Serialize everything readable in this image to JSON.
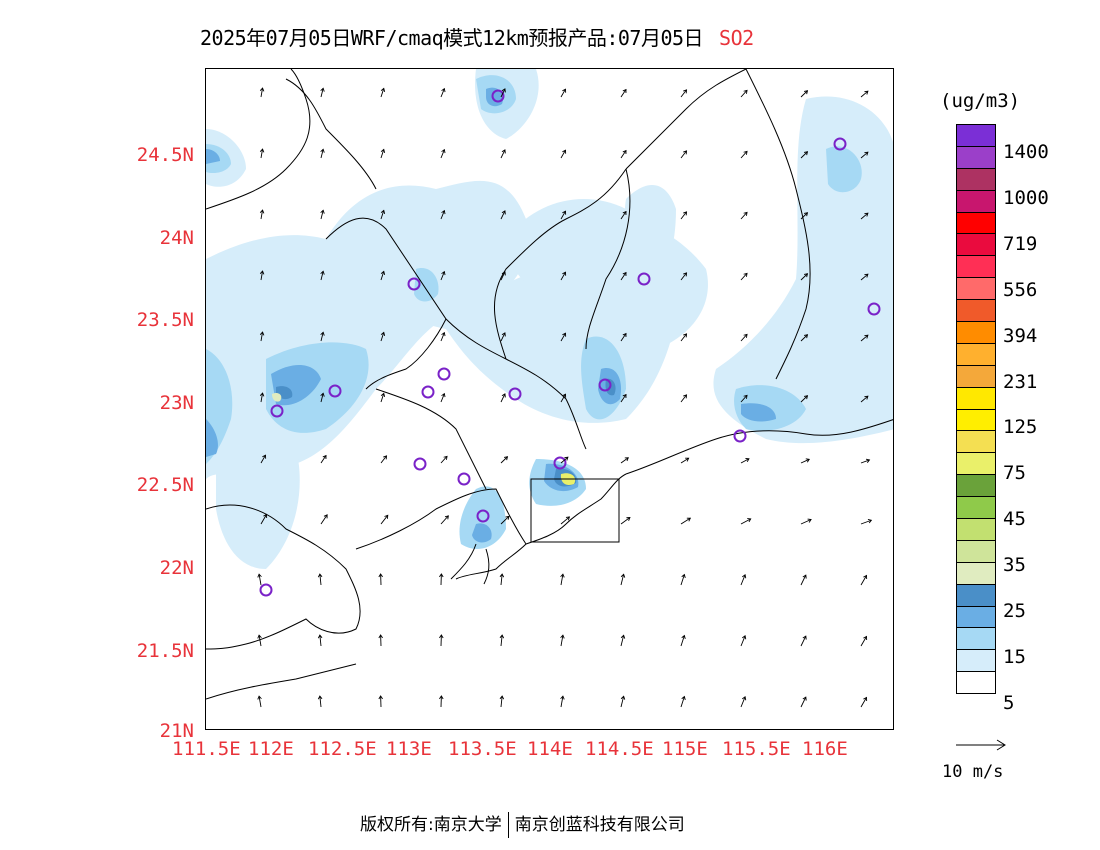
{
  "title": {
    "main": "2025年07月05日WRF/cmaq模式12km预报产品:07月05日",
    "species": "SO2",
    "species_color": "#e8333a"
  },
  "axes": {
    "lat_ticks": [
      "24.5N",
      "24N",
      "23.5N",
      "23N",
      "22.5N",
      "22N",
      "21.5N",
      "21N"
    ],
    "lon_ticks": [
      "111.5E",
      "112E",
      "112.5E",
      "113E",
      "113.5E",
      "114E",
      "114.5E",
      "115E",
      "115.5E",
      "116E"
    ],
    "tick_color": "#e8333a"
  },
  "colorbar": {
    "unit": "(ug/m3)",
    "labels": [
      "1400",
      "1000",
      "719",
      "556",
      "394",
      "231",
      "125",
      "75",
      "45",
      "35",
      "25",
      "15",
      "5"
    ],
    "colors": [
      "#7b2fd6",
      "#9b3fc9",
      "#ad3262",
      "#c8166e",
      "#ff0000",
      "#ea0b3e",
      "#ff2f55",
      "#ff6a6a",
      "#f05a2a",
      "#ff8c00",
      "#ffb02e",
      "#f4a83a",
      "#ffe800",
      "#ffee00",
      "#f4df52",
      "#eaf06a",
      "#6aa23a",
      "#8fca4a",
      "#c2e070",
      "#cfe49a",
      "#e0ecc0",
      "#4a8fc8",
      "#6aaee4",
      "#a6d9f4",
      "#d6edfa",
      "#ffffff"
    ]
  },
  "reference_vector": {
    "label": "10 m/s"
  },
  "footer": {
    "copyright": "版权所有:南京大学",
    "company": "南京创蓝科技有限公司"
  },
  "legend_items": {
    "station_marker": "purple-circle-icon"
  }
}
